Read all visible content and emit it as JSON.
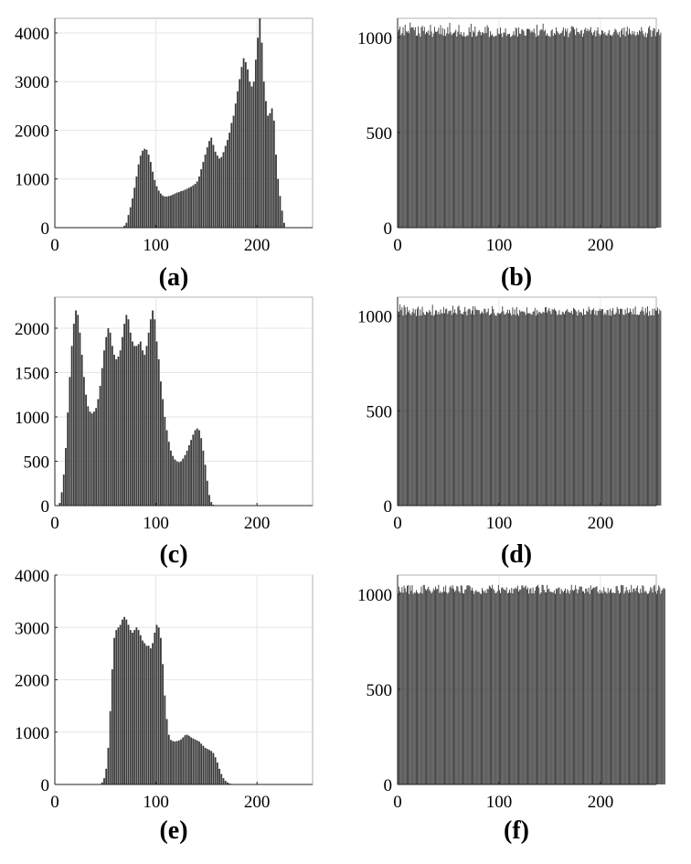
{
  "figure": {
    "bar_color": "#3a3a3a",
    "axis_color": "#222222"
  },
  "chart_data": [
    {
      "id": "a",
      "type": "bar",
      "caption": "(a)",
      "xlim": [
        0,
        255
      ],
      "ylim": [
        0,
        4300
      ],
      "xticks": [
        0,
        100,
        200
      ],
      "yticks": [
        0,
        1000,
        2000,
        3000,
        4000
      ],
      "xticklabels": [
        "0",
        "100",
        "200"
      ],
      "yticklabels": [
        "0",
        "1000",
        "2000",
        "3000",
        "4000"
      ],
      "x_start": 0,
      "bin_width": 2,
      "values": [
        0,
        0,
        0,
        0,
        0,
        0,
        0,
        0,
        0,
        0,
        0,
        0,
        0,
        0,
        0,
        0,
        0,
        0,
        0,
        0,
        0,
        0,
        0,
        0,
        0,
        0,
        0,
        0,
        0,
        0,
        0,
        0,
        0,
        10,
        40,
        100,
        260,
        420,
        600,
        820,
        1050,
        1300,
        1480,
        1580,
        1620,
        1600,
        1500,
        1350,
        1150,
        980,
        850,
        760,
        700,
        660,
        640,
        640,
        650,
        660,
        680,
        700,
        720,
        730,
        750,
        760,
        780,
        800,
        820,
        840,
        870,
        900,
        950,
        1050,
        1200,
        1350,
        1500,
        1650,
        1780,
        1850,
        1700,
        1560,
        1480,
        1420,
        1450,
        1550,
        1680,
        1800,
        1950,
        2150,
        2300,
        2550,
        2800,
        3050,
        3300,
        3480,
        3400,
        3250,
        3000,
        2900,
        3000,
        3450,
        3900,
        4300,
        3800,
        3000,
        2600,
        2300,
        2350,
        2450,
        2200,
        1500,
        1000,
        650,
        350,
        100
      ]
    },
    {
      "id": "b",
      "type": "bar",
      "caption": "(b)",
      "xlim": [
        0,
        255
      ],
      "ylim": [
        0,
        1100
      ],
      "xticks": [
        0,
        100,
        200
      ],
      "yticks": [
        0,
        500,
        1000
      ],
      "xticklabels": [
        "0",
        "100",
        "200"
      ],
      "yticklabels": [
        "0",
        "500",
        "1000"
      ],
      "x_start": 0,
      "bin_width": 1,
      "values": [
        1031,
        1042,
        1057,
        1012,
        1022,
        1053,
        1010,
        1066,
        1033,
        1026,
        1034,
        1022,
        1078,
        1051,
        1052,
        1052,
        1037,
        1053,
        1009,
        1010,
        1057,
        1021,
        1003,
        1052,
        1062,
        1033,
        1054,
        1017,
        1029,
        1024,
        1036,
        1012,
        1066,
        1031,
        1002,
        1020,
        1055,
        1030,
        1028,
        1032,
        1050,
        1017,
        1064,
        1016,
        1049,
        1008,
        1043,
        1007,
        1021,
        1053,
        1018,
        1076,
        1026,
        1012,
        1020,
        1024,
        1030,
        1040,
        1004,
        1030,
        1065,
        1016,
        1028,
        1013,
        1005,
        1026,
        1005,
        1003,
        1012,
        1008,
        1053,
        1028,
        1071,
        1001,
        1035,
        1026,
        1057,
        1004,
        1010,
        1028,
        1037,
        1028,
        1011,
        1027,
        1025,
        1020,
        1055,
        1023,
        1064,
        1052,
        1001,
        1032,
        1011,
        1017,
        1006,
        1003,
        1008,
        1008,
        1046,
        1019,
        1017,
        1051,
        1021,
        1001,
        1025,
        1025,
        1047,
        1008,
        1018,
        1016,
        1019,
        1001,
        1006,
        1012,
        1032,
        1011,
        1051,
        1046,
        1003,
        1052,
        1020,
        1018,
        1042,
        1040,
        1032,
        1009,
        1010,
        1044,
        1045,
        1044,
        1040,
        1026,
        1034,
        1027,
        1046,
        1021,
        1002,
        1066,
        1007,
        1012,
        1035,
        1043,
        1039,
        1072,
        1032,
        1040,
        1009,
        1021,
        1009,
        1007,
        1002,
        1035,
        1043,
        1009,
        1023,
        1015,
        1052,
        1032,
        1024,
        1015,
        1021,
        1024,
        1035,
        1052,
        1006,
        1045,
        1031,
        1046,
        1001,
        1022,
        1031,
        1059,
        1056,
        1053,
        1042,
        1012,
        1049,
        1028,
        1028,
        1018,
        1034,
        1039,
        1003,
        1021,
        1041,
        1050,
        1033,
        1044,
        1032,
        1040,
        1054,
        1025,
        1012,
        1027,
        1037,
        1005,
        1035,
        1053,
        1019,
        1008,
        1016,
        1038,
        1033,
        1019,
        1027,
        1012,
        1010,
        1022,
        1038,
        1012,
        1012,
        1007,
        1016,
        1029,
        1045,
        1039,
        1025,
        1014,
        1029,
        1000,
        1036,
        1047,
        1015,
        1052,
        1005,
        1031,
        1056,
        1015,
        1046,
        1021,
        1013,
        1033,
        1017,
        1031,
        1008,
        1013,
        1028,
        1013,
        1037,
        1030,
        1054,
        1034,
        1017,
        1003,
        1025,
        1000,
        1021,
        1050,
        1060,
        1039,
        1003,
        1034,
        1049,
        1045,
        1006,
        1026,
        1029,
        1043,
        1012,
        1025
      ]
    },
    {
      "id": "c",
      "type": "bar",
      "caption": "(c)",
      "xlim": [
        0,
        255
      ],
      "ylim": [
        0,
        2350
      ],
      "xticks": [
        0,
        100,
        200
      ],
      "yticks": [
        0,
        500,
        1000,
        1500,
        2000
      ],
      "xticklabels": [
        "0",
        "100",
        "200"
      ],
      "yticklabels": [
        "0",
        "500",
        "1000",
        "1500",
        "2000"
      ],
      "x_start": 0,
      "bin_width": 2,
      "values": [
        0,
        0,
        30,
        150,
        350,
        650,
        1050,
        1450,
        1800,
        2050,
        2200,
        2150,
        1950,
        1700,
        1450,
        1250,
        1120,
        1060,
        1040,
        1060,
        1100,
        1200,
        1350,
        1550,
        1750,
        1900,
        2000,
        1950,
        1800,
        1700,
        1650,
        1680,
        1750,
        1900,
        2050,
        2150,
        2100,
        1950,
        1850,
        1800,
        1800,
        1820,
        1850,
        1750,
        1700,
        1800,
        1950,
        2100,
        2200,
        2100,
        1850,
        1650,
        1400,
        1200,
        1000,
        850,
        720,
        620,
        560,
        520,
        500,
        490,
        500,
        530,
        570,
        620,
        680,
        740,
        800,
        850,
        870,
        850,
        760,
        620,
        460,
        280,
        120,
        40,
        10,
        0,
        0,
        0,
        0,
        0,
        0,
        0,
        0,
        0,
        0,
        0,
        0,
        0,
        0,
        0,
        0,
        0,
        0,
        0,
        0,
        0,
        0,
        0,
        0,
        0,
        0,
        0,
        0,
        0,
        0,
        0,
        0,
        0,
        0,
        0,
        0,
        0,
        0,
        0,
        0,
        0,
        0,
        0,
        0,
        0,
        0,
        0,
        0,
        0
      ]
    },
    {
      "id": "d",
      "type": "bar",
      "caption": "(d)",
      "xlim": [
        0,
        255
      ],
      "ylim": [
        0,
        1100
      ],
      "xticks": [
        0,
        100,
        200
      ],
      "yticks": [
        0,
        500,
        1000
      ],
      "xticklabels": [
        "0",
        "100",
        "200"
      ],
      "yticklabels": [
        "0",
        "500",
        "1000"
      ],
      "x_start": 0,
      "bin_width": 1,
      "values": [
        1025,
        1024,
        1062,
        1032,
        1046,
        1003,
        1058,
        1046,
        1008,
        1049,
        1021,
        1031,
        1014,
        1005,
        1021,
        1040,
        1016,
        1035,
        1000,
        1040,
        1050,
        1001,
        1035,
        1004,
        1049,
        1020,
        1009,
        1005,
        1024,
        1021,
        1017,
        1033,
        1023,
        1005,
        1060,
        1001,
        1008,
        1031,
        1030,
        1009,
        1023,
        1010,
        1036,
        1016,
        1015,
        1048,
        1015,
        1036,
        1040,
        1012,
        1026,
        1028,
        1030,
        1007,
        1055,
        1017,
        1036,
        1017,
        1010,
        1049,
        1055,
        1032,
        1012,
        1014,
        1009,
        1023,
        1048,
        1024,
        1004,
        1034,
        1040,
        1035,
        1011,
        1029,
        1052,
        1007,
        1051,
        1035,
        1032,
        1032,
        1031,
        1011,
        1017,
        1025,
        1014,
        1039,
        1038,
        1016,
        1023,
        1040,
        1004,
        1008,
        1014,
        1053,
        1037,
        1016,
        1003,
        1002,
        1017,
        1016,
        1012,
        1014,
        1021,
        1052,
        1026,
        1009,
        1010,
        1019,
        1034,
        1015,
        1033,
        1015,
        1003,
        1046,
        1009,
        1036,
        1005,
        1048,
        1012,
        1001,
        1032,
        1022,
        1027,
        1023,
        1025,
        1019,
        1006,
        1046,
        1015,
        1015,
        1016,
        1011,
        1007,
        1024,
        1025,
        1043,
        1002,
        1033,
        1012,
        1024,
        1021,
        1015,
        1015,
        1023,
        1019,
        1046,
        1048,
        1019,
        1030,
        1043,
        1026,
        1010,
        1037,
        1032,
        1040,
        1032,
        1025,
        1005,
        1011,
        1031,
        1007,
        1008,
        1024,
        1019,
        1010,
        1025,
        1030,
        1037,
        1023,
        1019,
        1018,
        1028,
        1010,
        1043,
        1038,
        1032,
        1024,
        1003,
        1033,
        1019,
        1023,
        1018,
        1005,
        1039,
        1008,
        1008,
        1029,
        1023,
        1049,
        1035,
        1011,
        1030,
        1034,
        1041,
        1009,
        1030,
        1004,
        1028,
        1029,
        1039,
        1029,
        1037,
        1037,
        1007,
        1018,
        1007,
        1032,
        1032,
        1005,
        1039,
        1001,
        1029,
        1043,
        1010,
        1008,
        1018,
        1048,
        1038,
        1011,
        1039,
        1038,
        1038,
        1008,
        1005,
        1035,
        1013,
        1044,
        1016,
        1020,
        1040,
        1023,
        1009,
        1040,
        1009,
        1051,
        1007,
        1009,
        1005,
        1008,
        1023,
        1030,
        1049,
        1025,
        1006,
        1043,
        1017,
        1052,
        1000,
        1026,
        1004,
        1005,
        1039,
        1003,
        1040,
        1030,
        1029,
        1045,
        1011,
        1035,
        1027
      ]
    },
    {
      "id": "e",
      "type": "bar",
      "caption": "(e)",
      "xlim": [
        0,
        255
      ],
      "ylim": [
        0,
        4000
      ],
      "xticks": [
        0,
        100,
        200
      ],
      "yticks": [
        0,
        1000,
        2000,
        3000,
        4000
      ],
      "xticklabels": [
        "0",
        "100",
        "200"
      ],
      "yticklabels": [
        "0",
        "1000",
        "2000",
        "3000",
        "4000"
      ],
      "x_start": 0,
      "bin_width": 2,
      "values": [
        0,
        0,
        0,
        0,
        0,
        0,
        0,
        0,
        0,
        0,
        0,
        0,
        0,
        0,
        0,
        0,
        0,
        0,
        0,
        0,
        0,
        0,
        10,
        40,
        120,
        300,
        700,
        1400,
        2200,
        2800,
        2950,
        3000,
        3050,
        3150,
        3200,
        3150,
        3050,
        2950,
        2900,
        2950,
        3000,
        2950,
        2850,
        2750,
        2700,
        2650,
        2650,
        2600,
        2700,
        2900,
        3050,
        3000,
        2800,
        2300,
        1700,
        1250,
        950,
        850,
        830,
        820,
        830,
        840,
        860,
        900,
        940,
        950,
        930,
        900,
        880,
        860,
        840,
        820,
        780,
        740,
        700,
        680,
        660,
        640,
        600,
        520,
        420,
        300,
        200,
        120,
        70,
        40,
        20,
        10,
        0,
        0,
        0,
        0,
        0,
        0,
        0,
        0,
        0,
        0,
        0,
        0,
        0,
        0,
        0,
        0,
        0,
        0,
        0,
        0,
        0,
        0,
        0,
        0,
        0,
        0,
        0,
        0,
        0,
        0,
        0,
        0,
        0,
        0,
        0,
        0,
        0,
        0,
        0,
        0
      ]
    },
    {
      "id": "f",
      "type": "bar",
      "caption": "(f)",
      "xlim": [
        0,
        255
      ],
      "ylim": [
        0,
        1100
      ],
      "xticks": [
        0,
        100,
        200
      ],
      "yticks": [
        0,
        500,
        1000
      ],
      "xticklabels": [
        "0",
        "100",
        "200"
      ],
      "yticklabels": [
        "0",
        "500",
        "1000"
      ],
      "x_start": 0,
      "bin_width": 1,
      "values": [
        1003,
        1039,
        1015,
        1008,
        1038,
        1007,
        1045,
        1030,
        1011,
        1043,
        1048,
        1000,
        1045,
        1017,
        1047,
        1001,
        1010,
        1006,
        1022,
        1010,
        1003,
        1002,
        1009,
        1040,
        1003,
        1048,
        1048,
        1027,
        1019,
        1028,
        1039,
        1024,
        1015,
        1004,
        1014,
        1030,
        1021,
        1040,
        1026,
        1028,
        1049,
        1006,
        1016,
        1007,
        1011,
        1039,
        1013,
        1045,
        1010,
        1002,
        1010,
        1036,
        1044,
        1031,
        1046,
        1027,
        1012,
        1020,
        1043,
        1039,
        1016,
        1007,
        1047,
        1043,
        1006,
        1003,
        1023,
        1025,
        1045,
        1046,
        1046,
        1040,
        1019,
        1034,
        1018,
        1001,
        1015,
        1022,
        1012,
        1013,
        1011,
        1003,
        1000,
        1032,
        1020,
        1009,
        1020,
        1005,
        1028,
        1026,
        1045,
        1039,
        1030,
        1049,
        1028,
        1020,
        1005,
        1007,
        1016,
        1048,
        1021,
        1005,
        1032,
        1037,
        1028,
        1024,
        1019,
        1035,
        1004,
        1008,
        1024,
        1006,
        1033,
        1004,
        1029,
        1027,
        1036,
        1028,
        1045,
        1014,
        1024,
        1024,
        1044,
        1046,
        1032,
        1039,
        1045,
        1025,
        1035,
        1003,
        1027,
        1032,
        1004,
        1035,
        1003,
        1019,
        1038,
        1043,
        1049,
        1034,
        1000,
        1009,
        1049,
        1047,
        1023,
        1011,
        1009,
        1048,
        1025,
        1029,
        1013,
        1012,
        1010,
        1008,
        1020,
        1001,
        1029,
        1027,
        1034,
        1035,
        1000,
        1027,
        1017,
        1010,
        1019,
        1030,
        1005,
        1026,
        1016,
        1002,
        1021,
        1049,
        1022,
        1017,
        1024,
        1047,
        1027,
        1005,
        1024,
        1041,
        1038,
        1040,
        1015,
        1015,
        1004,
        1029,
        1029,
        1012,
        1034,
        1000,
        1046,
        1023,
        1031,
        1036,
        1033,
        1038,
        1042,
        1012,
        1003,
        1023,
        1006,
        1017,
        1004,
        1036,
        1015,
        1010,
        1003,
        1032,
        1008,
        1020,
        1028,
        1006,
        1009,
        1006,
        1005,
        1041,
        1043,
        1021,
        1002,
        1008,
        1048,
        1047,
        1046,
        1003,
        1015,
        1038,
        1021,
        1007,
        1024,
        1008,
        1048,
        1011,
        1029,
        1029,
        1016,
        1033,
        1045,
        1010,
        1003,
        1028,
        1006,
        1047,
        1041,
        1011,
        1018,
        1008,
        1000,
        1003,
        1016,
        1037,
        1030,
        1008,
        1042,
        1049,
        1014,
        1001,
        1020,
        1046,
        1036,
        1002,
        1020,
        1026,
        1034,
        1027
      ]
    }
  ]
}
